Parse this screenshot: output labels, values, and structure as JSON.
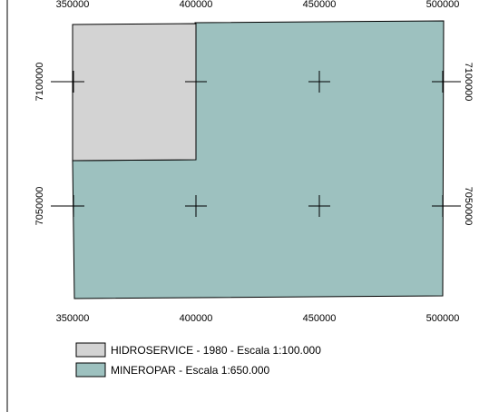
{
  "map": {
    "x_ticks": [
      "350000",
      "400000",
      "450000",
      "500000"
    ],
    "y_ticks": [
      "7100000",
      "7050000"
    ],
    "legend": [
      {
        "label": "HIDROSERVICE - 1980 - Escala 1:100.000",
        "color": "#d3d3d3"
      },
      {
        "label": "MINEROPAR - Escala 1:650.000",
        "color": "#9dc1bf"
      }
    ],
    "fill_colors": {
      "mineropar": "#9dc1bf",
      "hidroservice": "#d3d3d3",
      "outline": "#000000"
    }
  }
}
